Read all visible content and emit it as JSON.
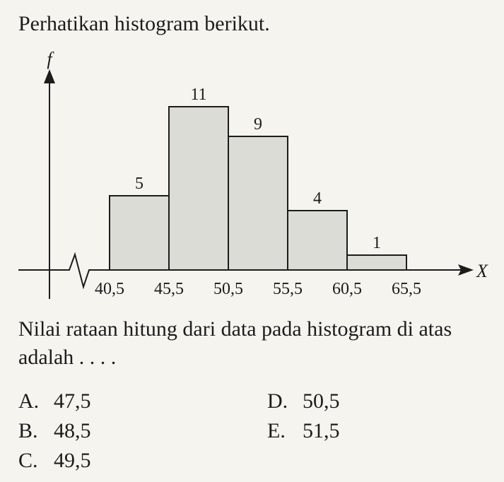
{
  "intro": "Perhatikan histogram berikut.",
  "question": "Nilai rataan hitung dari data pada histogram di atas adalah . . . .",
  "options": [
    {
      "letter": "A.",
      "value": "47,5"
    },
    {
      "letter": "B.",
      "value": "48,5"
    },
    {
      "letter": "C.",
      "value": "49,5"
    },
    {
      "letter": "D.",
      "value": "50,5"
    },
    {
      "letter": "E.",
      "value": "51,5"
    }
  ],
  "chart_data": {
    "type": "bar",
    "ylabel": "f",
    "xlabel": "X",
    "edges": [
      "40,5",
      "45,5",
      "50,5",
      "55,5",
      "60,5",
      "65,5"
    ],
    "values": [
      5,
      11,
      9,
      4,
      1
    ],
    "ylim": [
      0,
      11
    ],
    "grid": false,
    "bar_color": "#dcdcd6",
    "stroke_color": "#1c1c1c"
  }
}
